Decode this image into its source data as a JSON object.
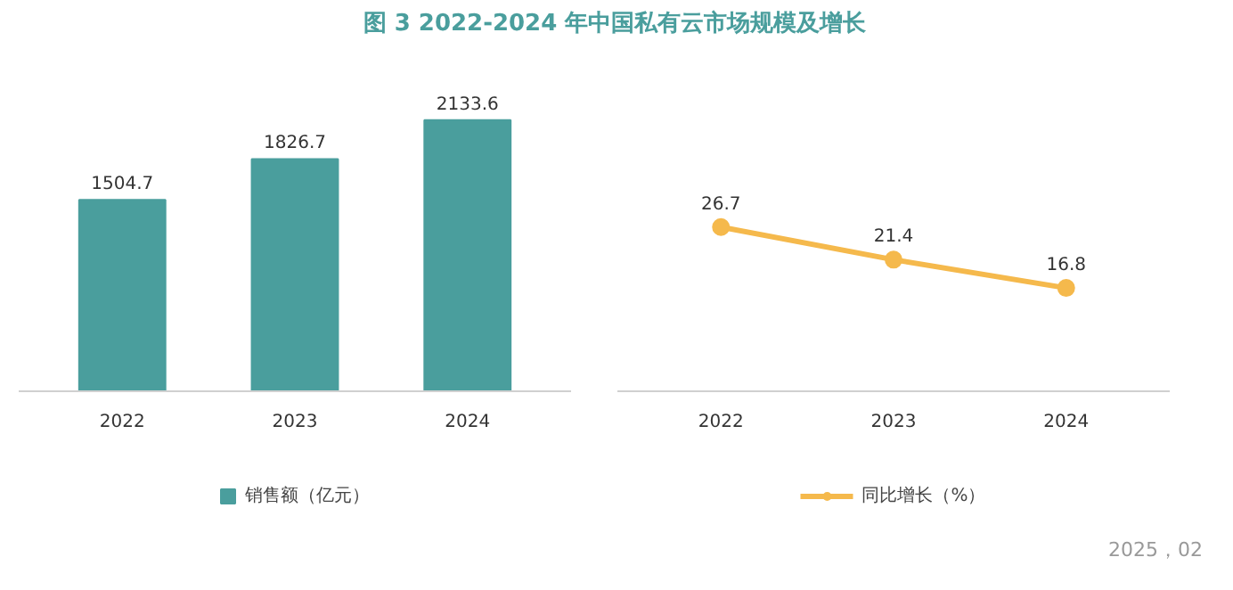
{
  "chart_data": [
    {
      "type": "bar",
      "title": "图 3   2022-2024 年中国私有云市场规模及增长",
      "categories": [
        "2022",
        "2023",
        "2024"
      ],
      "series": [
        {
          "name": "销售额（亿元）",
          "color": "#4a9e9d",
          "values": [
            1504.7,
            1826.7,
            2133.6
          ]
        }
      ],
      "data_labels": true,
      "legend": "bottom",
      "tick_labels": "x"
    },
    {
      "type": "line",
      "categories": [
        "2022",
        "2023",
        "2024"
      ],
      "series": [
        {
          "name": "同比增长（%）",
          "color": "#f5b94c",
          "values": [
            26.7,
            21.4,
            16.8
          ]
        }
      ],
      "data_labels": true,
      "legend": "bottom",
      "tick_labels": "x",
      "marker": "circle",
      "line_style": "solid",
      "annotations": [
        "2025，02"
      ]
    }
  ]
}
